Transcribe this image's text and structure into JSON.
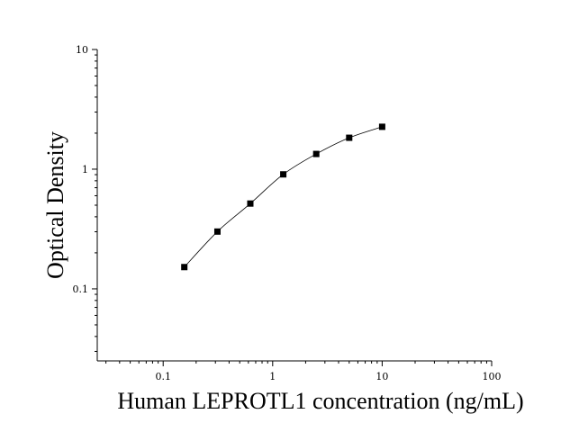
{
  "chart_data": {
    "type": "scatter",
    "title": "",
    "xlabel": "Human LEPROTL1 concentration (ng/mL)",
    "ylabel": "Optical Density",
    "xscale": "log",
    "yscale": "log",
    "xlim": [
      0.025,
      100
    ],
    "ylim": [
      0.025,
      10
    ],
    "x_ticks": [
      0.1,
      1,
      10,
      100
    ],
    "x_tick_labels": [
      "0.1",
      "1",
      "10",
      "100"
    ],
    "y_ticks": [
      0.1,
      1,
      10
    ],
    "y_tick_labels": [
      "0.1",
      "1",
      "10"
    ],
    "grid": false,
    "fitted_curve": true,
    "series": [
      {
        "x": [
          0.156,
          0.313,
          0.625,
          1.25,
          2.5,
          5,
          10
        ],
        "y": [
          0.152,
          0.301,
          0.516,
          0.905,
          1.34,
          1.83,
          2.26
        ]
      }
    ]
  },
  "colors": {
    "markers": "#000000",
    "curve": "#000000",
    "axes": "#000000"
  }
}
